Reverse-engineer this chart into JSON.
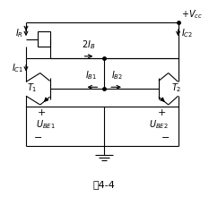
{
  "fig_width": 2.33,
  "fig_height": 2.39,
  "dpi": 100,
  "bg_color": "#ffffff",
  "caption": "图4-4",
  "caption_fontsize": 8,
  "line_color": "#000000",
  "line_width": 0.8,
  "font_size": 7.0
}
